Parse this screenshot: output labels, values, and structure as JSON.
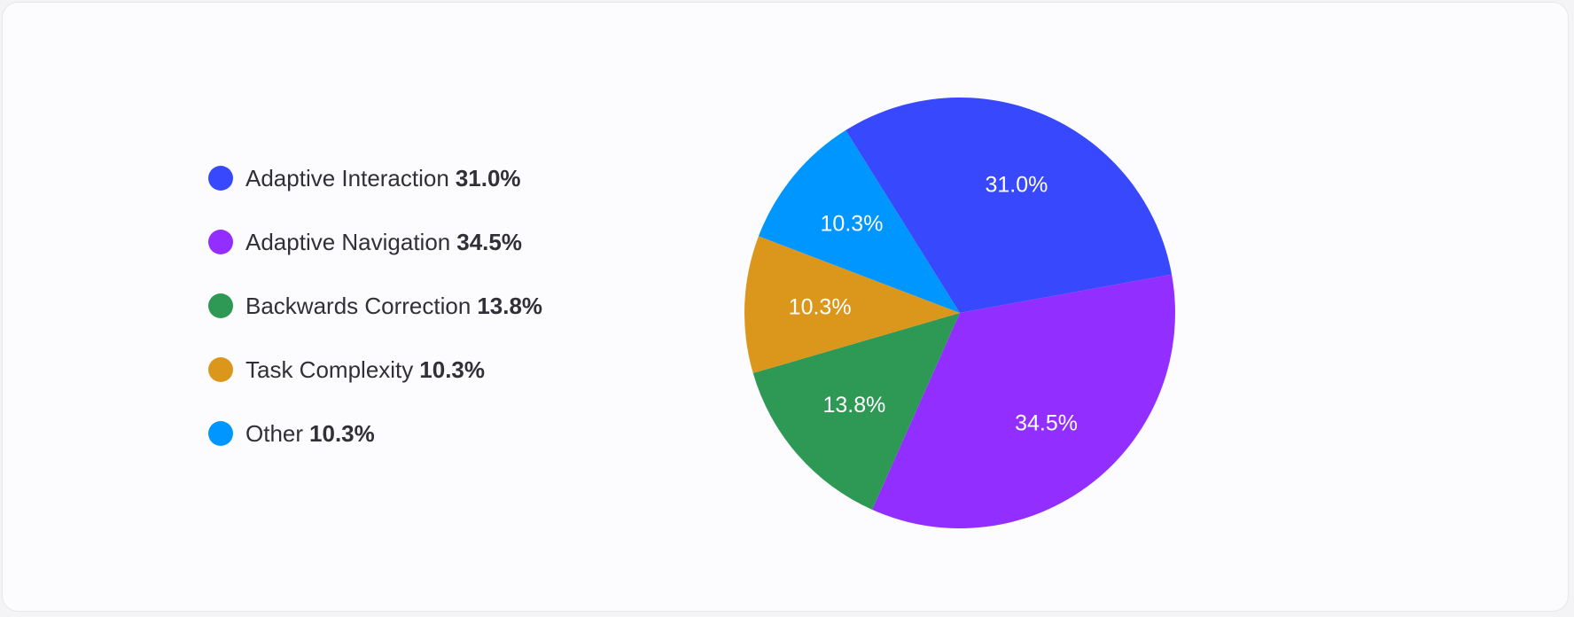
{
  "chart_data": {
    "type": "pie",
    "title": "",
    "start_angle_deg": -32,
    "slices": [
      {
        "label": "Adaptive Interaction",
        "value": 31.0,
        "display": "31.0%",
        "color": "#3848fd"
      },
      {
        "label": "Adaptive Navigation",
        "value": 34.5,
        "display": "34.5%",
        "color": "#922eff"
      },
      {
        "label": "Backwards Correction",
        "value": 13.8,
        "display": "13.8%",
        "color": "#2e9955"
      },
      {
        "label": "Task Complexity",
        "value": 10.3,
        "display": "10.3%",
        "color": "#db961c"
      },
      {
        "label": "Other",
        "value": 10.3,
        "display": "10.3%",
        "color": "#0096ff"
      }
    ],
    "legend": {
      "position": "left"
    }
  }
}
